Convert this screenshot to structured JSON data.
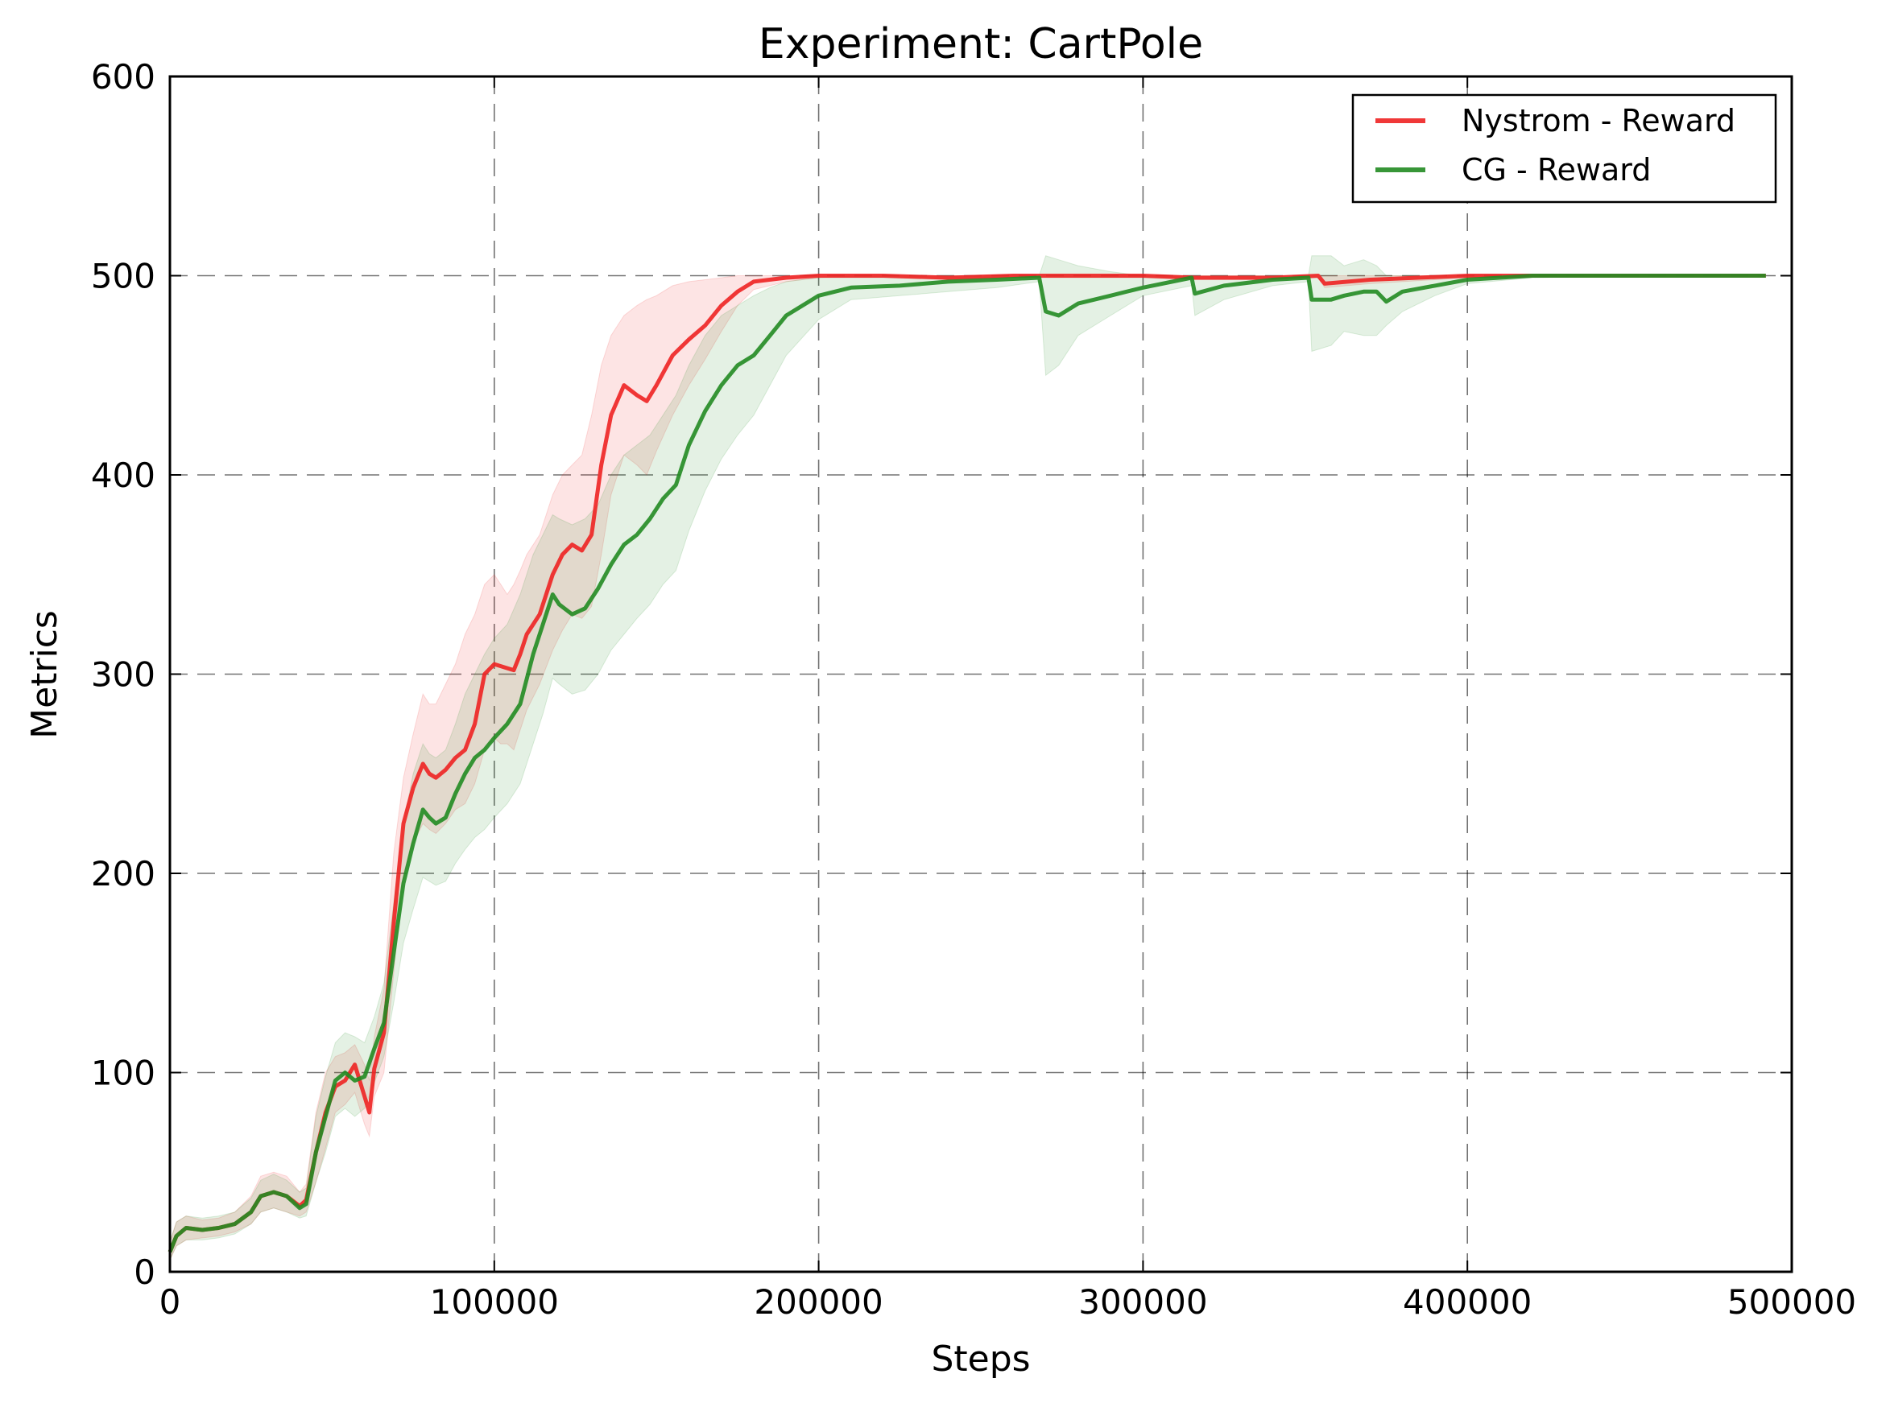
{
  "chart_data": {
    "type": "line",
    "title": "Experiment: CartPole",
    "xlabel": "Steps",
    "ylabel": "Metrics",
    "xlim": [
      0,
      500000
    ],
    "ylim": [
      0,
      600
    ],
    "xticks": [
      0,
      100000,
      200000,
      300000,
      400000,
      500000
    ],
    "xtick_labels": [
      "0",
      "100000",
      "200000",
      "300000",
      "400000",
      "500000"
    ],
    "yticks": [
      0,
      100,
      200,
      300,
      400,
      500,
      600
    ],
    "ytick_labels": [
      "0",
      "100",
      "200",
      "300",
      "400",
      "500",
      "600"
    ],
    "grid": true,
    "legend_position": "top-right",
    "series": [
      {
        "name": "Nystrom - Reward",
        "color": "#ee2222",
        "x": [
          0,
          2000,
          5000,
          10000,
          15000,
          20000,
          25000,
          28000,
          32000,
          36000,
          40000,
          42000,
          45000,
          48000,
          51000,
          54000,
          57000,
          60000,
          61500,
          63000,
          66000,
          69000,
          72000,
          75000,
          78000,
          80000,
          82000,
          85000,
          88000,
          91000,
          94000,
          97000,
          100000,
          102000,
          104000,
          106000,
          108000,
          110000,
          114000,
          118000,
          121000,
          124000,
          127000,
          130000,
          133000,
          136000,
          140000,
          144000,
          147000,
          150000,
          155000,
          160000,
          165000,
          170000,
          175000,
          180000,
          190000,
          200000,
          220000,
          240000,
          260000,
          300000,
          316000,
          340000,
          354000,
          356000,
          370000,
          400000,
          450000,
          492000
        ],
        "values": [
          10,
          18,
          22,
          21,
          22,
          24,
          30,
          38,
          40,
          38,
          33,
          36,
          60,
          80,
          93,
          96,
          104,
          88,
          80,
          102,
          120,
          175,
          225,
          243,
          255,
          250,
          248,
          252,
          258,
          262,
          275,
          300,
          305,
          304,
          303,
          302,
          310,
          320,
          330,
          350,
          360,
          365,
          362,
          370,
          405,
          430,
          445,
          440,
          437,
          445,
          460,
          468,
          475,
          485,
          492,
          497,
          499,
          500,
          500,
          499,
          500,
          500,
          499,
          499,
          500,
          496,
          498,
          500,
          500,
          500
        ],
        "band_upper": [
          15,
          25,
          28,
          26,
          27,
          30,
          38,
          48,
          50,
          48,
          40,
          44,
          80,
          100,
          108,
          110,
          114,
          104,
          96,
          118,
          142,
          210,
          248,
          270,
          290,
          285,
          285,
          295,
          305,
          320,
          330,
          345,
          350,
          345,
          340,
          345,
          352,
          360,
          370,
          390,
          400,
          405,
          410,
          430,
          455,
          470,
          480,
          485,
          488,
          490,
          495,
          497,
          498,
          499,
          500,
          500,
          500,
          500,
          500,
          500,
          500,
          500,
          500,
          500,
          500,
          500,
          500,
          500,
          500,
          500
        ],
        "band_lower": [
          6,
          13,
          16,
          17,
          18,
          20,
          24,
          30,
          32,
          30,
          28,
          30,
          45,
          62,
          80,
          84,
          90,
          74,
          68,
          88,
          100,
          150,
          200,
          215,
          225,
          222,
          220,
          225,
          232,
          235,
          245,
          262,
          268,
          265,
          265,
          262,
          272,
          282,
          295,
          312,
          322,
          330,
          328,
          334,
          360,
          390,
          410,
          405,
          400,
          412,
          430,
          445,
          458,
          472,
          485,
          493,
          497,
          499,
          499,
          498,
          499,
          499,
          498,
          498,
          499,
          494,
          496,
          499,
          500,
          500
        ]
      },
      {
        "name": "CG - Reward",
        "color": "#228b22",
        "x": [
          0,
          2000,
          5000,
          10000,
          15000,
          20000,
          25000,
          28000,
          32000,
          36000,
          40000,
          42000,
          45000,
          48000,
          51000,
          54000,
          57000,
          60000,
          63000,
          66000,
          69000,
          72000,
          75000,
          78000,
          80000,
          82000,
          85000,
          88000,
          91000,
          94000,
          97000,
          100000,
          104000,
          108000,
          112000,
          115000,
          118000,
          120000,
          124000,
          128000,
          132000,
          136000,
          140000,
          144000,
          148000,
          152000,
          156000,
          160000,
          165000,
          170000,
          175000,
          180000,
          185000,
          190000,
          200000,
          210000,
          225000,
          240000,
          255000,
          268000,
          270000,
          274000,
          280000,
          290000,
          300000,
          315000,
          316000,
          325000,
          340000,
          351000,
          352000,
          358000,
          362000,
          368000,
          372000,
          375000,
          380000,
          390000,
          400000,
          420000,
          450000,
          492000
        ],
        "values": [
          10,
          18,
          22,
          21,
          22,
          24,
          30,
          38,
          40,
          38,
          32,
          34,
          60,
          78,
          96,
          100,
          96,
          98,
          112,
          125,
          160,
          195,
          215,
          232,
          228,
          225,
          228,
          240,
          250,
          258,
          262,
          268,
          275,
          285,
          310,
          325,
          340,
          335,
          330,
          333,
          343,
          355,
          365,
          370,
          378,
          388,
          395,
          415,
          432,
          445,
          455,
          460,
          470,
          480,
          490,
          494,
          495,
          497,
          498,
          499,
          482,
          480,
          486,
          490,
          494,
          499,
          491,
          495,
          498,
          499,
          488,
          488,
          490,
          492,
          492,
          487,
          492,
          495,
          498,
          500,
          500,
          500
        ],
        "band_upper": [
          15,
          25,
          28,
          27,
          28,
          30,
          37,
          46,
          49,
          46,
          40,
          42,
          78,
          98,
          115,
          120,
          118,
          115,
          128,
          145,
          185,
          225,
          250,
          265,
          260,
          258,
          262,
          275,
          290,
          300,
          310,
          318,
          325,
          340,
          360,
          370,
          380,
          378,
          375,
          378,
          385,
          400,
          410,
          415,
          420,
          430,
          440,
          455,
          470,
          480,
          485,
          490,
          494,
          497,
          499,
          500,
          500,
          500,
          500,
          500,
          510,
          508,
          505,
          502,
          500,
          500,
          500,
          500,
          500,
          500,
          510,
          510,
          505,
          508,
          505,
          500,
          500,
          500,
          500,
          500,
          500,
          500
        ],
        "band_lower": [
          6,
          13,
          16,
          16,
          17,
          19,
          24,
          30,
          32,
          30,
          27,
          28,
          45,
          60,
          78,
          82,
          78,
          82,
          95,
          108,
          135,
          165,
          182,
          198,
          196,
          194,
          196,
          205,
          212,
          218,
          222,
          228,
          235,
          245,
          265,
          280,
          298,
          295,
          290,
          292,
          300,
          312,
          320,
          328,
          335,
          345,
          352,
          372,
          392,
          408,
          420,
          430,
          445,
          460,
          478,
          488,
          490,
          492,
          494,
          497,
          450,
          455,
          470,
          480,
          490,
          495,
          480,
          488,
          495,
          497,
          462,
          465,
          472,
          470,
          470,
          475,
          482,
          490,
          496,
          499,
          500,
          500
        ]
      }
    ]
  }
}
